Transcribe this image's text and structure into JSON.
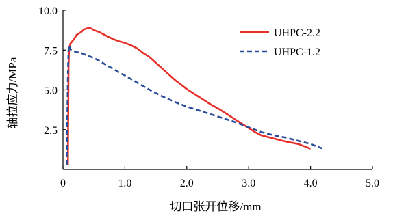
{
  "chart_data": {
    "type": "line",
    "xlabel": "切口张开位移/mm",
    "ylabel": "轴拉应力/MPa",
    "xlim": [
      0,
      5
    ],
    "ylim": [
      0,
      10
    ],
    "x_ticks": [
      "0",
      "1.0",
      "2.0",
      "3.0",
      "4.0",
      "5.0"
    ],
    "y_ticks": [
      "2.5",
      "5.0",
      "7.5",
      "10.0"
    ],
    "x_tick_values": [
      0,
      1,
      2,
      3,
      4,
      5
    ],
    "y_tick_values": [
      2.5,
      5.0,
      7.5,
      10.0
    ],
    "grid": false,
    "legend_position": "top-right",
    "series": [
      {
        "name": "UHPC-2.2",
        "color": "#e8302a",
        "line_style": "solid",
        "x": [
          0.08,
          0.09,
          0.1,
          0.12,
          0.14,
          0.18,
          0.22,
          0.26,
          0.3,
          0.34,
          0.38,
          0.42,
          0.46,
          0.5,
          0.6,
          0.7,
          0.8,
          0.9,
          1.0,
          1.1,
          1.2,
          1.3,
          1.4,
          1.5,
          1.6,
          1.7,
          1.8,
          1.9,
          2.0,
          2.1,
          2.2,
          2.3,
          2.4,
          2.5,
          2.6,
          2.7,
          2.8,
          2.9,
          3.0,
          3.1,
          3.2,
          3.4,
          3.6,
          3.8,
          3.9,
          4.0
        ],
        "y": [
          0.3,
          6.5,
          7.6,
          7.9,
          8.0,
          8.2,
          8.45,
          8.55,
          8.65,
          8.8,
          8.85,
          8.9,
          8.85,
          8.75,
          8.6,
          8.4,
          8.2,
          8.05,
          7.95,
          7.8,
          7.6,
          7.3,
          7.05,
          6.7,
          6.35,
          6.0,
          5.65,
          5.35,
          5.05,
          4.8,
          4.55,
          4.3,
          4.05,
          3.85,
          3.6,
          3.35,
          3.1,
          2.85,
          2.6,
          2.35,
          2.15,
          1.95,
          1.75,
          1.6,
          1.45,
          1.3
        ]
      },
      {
        "name": "UHPC-1.2",
        "color": "#2a4d9b",
        "line_style": "dashed",
        "x": [
          0.06,
          0.08,
          0.09,
          0.1,
          0.12,
          0.16,
          0.2,
          0.3,
          0.4,
          0.5,
          0.6,
          0.7,
          0.8,
          0.9,
          1.0,
          1.2,
          1.4,
          1.6,
          1.8,
          2.0,
          2.2,
          2.4,
          2.6,
          2.8,
          3.0,
          3.2,
          3.4,
          3.6,
          3.8,
          4.0,
          4.1,
          4.2
        ],
        "y": [
          0.3,
          6.0,
          7.5,
          7.8,
          7.55,
          7.45,
          7.4,
          7.3,
          7.15,
          7.0,
          6.8,
          6.55,
          6.35,
          6.1,
          5.9,
          5.45,
          5.0,
          4.6,
          4.25,
          3.95,
          3.7,
          3.45,
          3.2,
          2.95,
          2.65,
          2.35,
          2.15,
          2.0,
          1.8,
          1.6,
          1.45,
          1.3
        ]
      }
    ]
  }
}
